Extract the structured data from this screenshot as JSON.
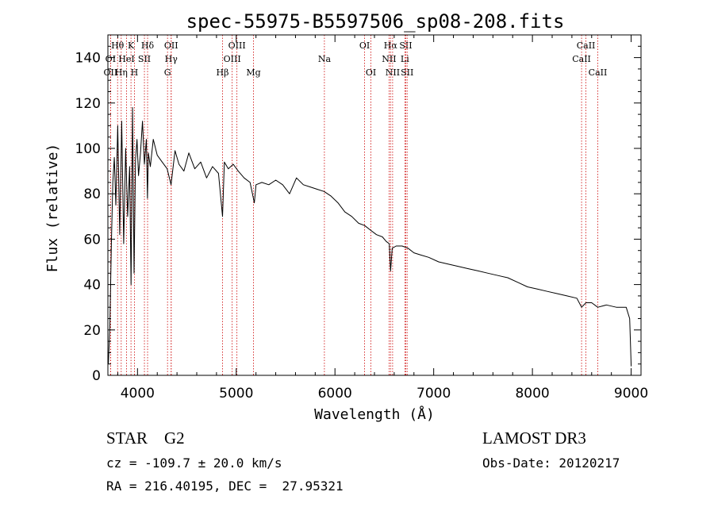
{
  "chart_data": {
    "type": "line",
    "title": "spec-55975-B5597506_sp08-208.fits",
    "xlabel": "Wavelength (Å)",
    "ylabel": "Flux (relative)",
    "xlim": [
      3700,
      9100
    ],
    "ylim": [
      0,
      150
    ],
    "xticks": [
      4000,
      5000,
      6000,
      7000,
      8000,
      9000
    ],
    "yticks": [
      0,
      20,
      40,
      60,
      80,
      100,
      120,
      140
    ],
    "series": [
      {
        "name": "flux",
        "x": [
          3705,
          3720,
          3735,
          3750,
          3765,
          3780,
          3800,
          3820,
          3840,
          3860,
          3880,
          3900,
          3920,
          3935,
          3950,
          3965,
          3980,
          3995,
          4010,
          4030,
          4050,
          4070,
          4090,
          4101,
          4110,
          4130,
          4160,
          4200,
          4250,
          4300,
          4340,
          4380,
          4420,
          4470,
          4520,
          4580,
          4640,
          4700,
          4760,
          4820,
          4861,
          4880,
          4920,
          4970,
          5020,
          5080,
          5140,
          5183,
          5200,
          5260,
          5330,
          5400,
          5470,
          5540,
          5610,
          5680,
          5750,
          5820,
          5890,
          5960,
          6030,
          6100,
          6170,
          6240,
          6300,
          6360,
          6420,
          6480,
          6520,
          6550,
          6563,
          6580,
          6620,
          6680,
          6740,
          6800,
          6870,
          6950,
          7050,
          7150,
          7250,
          7350,
          7450,
          7550,
          7650,
          7750,
          7850,
          7950,
          8050,
          8150,
          8250,
          8350,
          8450,
          8498,
          8542,
          8600,
          8662,
          8750,
          8850,
          8950,
          8985,
          8995,
          9000
        ],
        "values": [
          5,
          22,
          58,
          85,
          96,
          75,
          110,
          62,
          112,
          58,
          100,
          70,
          92,
          40,
          118,
          45,
          95,
          104,
          88,
          98,
          112,
          93,
          104,
          78,
          98,
          92,
          104,
          97,
          94,
          91,
          84,
          99,
          93,
          90,
          98,
          91,
          94,
          87,
          92,
          89,
          70,
          94,
          91,
          93,
          90,
          87,
          85,
          76,
          84,
          85,
          84,
          86,
          84,
          80,
          87,
          84,
          83,
          82,
          81,
          79,
          76,
          72,
          70,
          67,
          66,
          64,
          62,
          61,
          59,
          58,
          46,
          56,
          57,
          57,
          56,
          54,
          53,
          52,
          50,
          49,
          48,
          47,
          46,
          45,
          44,
          43,
          41,
          39,
          38,
          37,
          36,
          35,
          34,
          30,
          32,
          32,
          30,
          31,
          30,
          30,
          25,
          12,
          4
        ]
      }
    ],
    "lines": [
      {
        "label": "Hθ",
        "x": 3798,
        "row": 0
      },
      {
        "label": "K",
        "x": 3934,
        "row": 0
      },
      {
        "label": "Hδ",
        "x": 4102,
        "row": 0
      },
      {
        "label": "OII",
        "x": 4341,
        "row": 0
      },
      {
        "label": "OIII",
        "x": 5007,
        "row": 0
      },
      {
        "label": "OI",
        "x": 6300,
        "row": 0
      },
      {
        "label": "Hα",
        "x": 6563,
        "row": 0
      },
      {
        "label": "SII",
        "x": 6717,
        "row": 0
      },
      {
        "label": "CaII",
        "x": 8542,
        "row": 0
      },
      {
        "label": "OI",
        "x": 3727,
        "row": 1
      },
      {
        "label": "HeI",
        "x": 3889,
        "row": 1
      },
      {
        "label": "SII",
        "x": 4070,
        "row": 1
      },
      {
        "label": "Hγ",
        "x": 4341,
        "row": 1
      },
      {
        "label": "OIII",
        "x": 4959,
        "row": 1
      },
      {
        "label": "Na",
        "x": 5893,
        "row": 1
      },
      {
        "label": "NII",
        "x": 6548,
        "row": 1
      },
      {
        "label": "Li",
        "x": 6708,
        "row": 1
      },
      {
        "label": "CaII",
        "x": 8498,
        "row": 1
      },
      {
        "label": "OII",
        "x": 3727,
        "row": 2
      },
      {
        "label": "Hη",
        "x": 3835,
        "row": 2
      },
      {
        "label": "H",
        "x": 3969,
        "row": 2
      },
      {
        "label": "G",
        "x": 4304,
        "row": 2
      },
      {
        "label": "Hβ",
        "x": 4861,
        "row": 2
      },
      {
        "label": "Mg",
        "x": 5175,
        "row": 2
      },
      {
        "label": "OI",
        "x": 6364,
        "row": 2
      },
      {
        "label": "NII",
        "x": 6584,
        "row": 2
      },
      {
        "label": "SII",
        "x": 6731,
        "row": 2
      },
      {
        "label": "CaII",
        "x": 8662,
        "row": 2
      }
    ]
  },
  "info": {
    "class_text": "STAR    G2",
    "survey_text": "LAMOST DR3",
    "cz_text": "cz = -109.7 ± 20.0 km/s",
    "obs_date_text": "Obs-Date: 20120217",
    "radec_text": "RA = 216.40195, DEC =  27.95321"
  },
  "colors": {
    "axes": "#000000",
    "line_markers": "#cc0000",
    "spectrum": "#000000"
  }
}
